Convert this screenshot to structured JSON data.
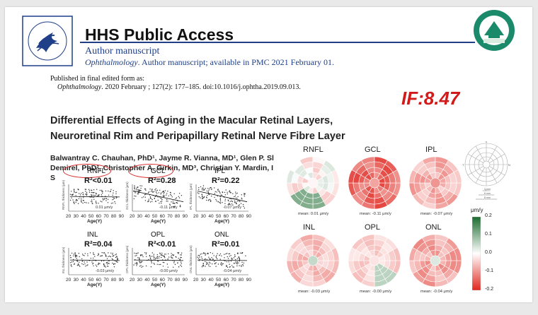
{
  "header": {
    "title": "HHS Public Access",
    "subtitle": "Author manuscript",
    "journal_italic": "Ophthalmology",
    "journal_rest": ". Author manuscript; available in PMC 2021 February 01."
  },
  "published": {
    "line1": "Published in final edited form as:",
    "journal_italic": "Ophthalmology",
    "citation": ". 2020 February ; 127(2): 177–185. doi:10.1016/j.ophtha.2019.09.013."
  },
  "impact_factor": "IF:8.47",
  "paper_title": "Differential Effects of Aging in the Macular Retinal Layers, Neuroretinal Rim and Peripapillary Retinal Nerve Fibre Layer",
  "authors": {
    "line1": "Balwantray C. Chauhan, PhD¹, Jayme R. Vianna, MD¹, Glen P. Sl",
    "line2": "Demirel, PhD², Christopher A. Girkin, MD³, Christian Y. Mardin, I",
    "line3": "S"
  },
  "scatter_panels": [
    {
      "layer": "RNFL",
      "r2": "R²<0.01",
      "slope": "0.01 μm/y",
      "trend": "flat"
    },
    {
      "layer": "GCL",
      "r2": "R²=0.28",
      "slope": "-0.11 μm/y",
      "trend": "down"
    },
    {
      "layer": "IPL",
      "r2": "R²=0.22",
      "slope": "-0.07 μm/y",
      "trend": "down"
    },
    {
      "layer": "INL",
      "r2": "R²=0.04",
      "slope": "-0.03 μm/y",
      "trend": "flat"
    },
    {
      "layer": "OPL",
      "r2": "R²<0.01",
      "slope": "-0.00 μm/y",
      "trend": "flat"
    },
    {
      "layer": "ONL",
      "r2": "R²=0.01",
      "slope": "-0.04 μm/y",
      "trend": "flat"
    }
  ],
  "age_axis": {
    "ticks": [
      "20",
      "30",
      "40",
      "50",
      "60",
      "70",
      "80",
      "90"
    ],
    "label": "Age(Y)"
  },
  "maps": [
    {
      "layer": "RNFL",
      "mean": "mean: 0.01 μm/y"
    },
    {
      "layer": "GCL",
      "mean": "mean: -0.11 μm/y"
    },
    {
      "layer": "IPL",
      "mean": "mean: -0.07 μm/y"
    },
    {
      "layer": "INL",
      "mean": "mean: -0.03 μm/y"
    },
    {
      "layer": "OPL",
      "mean": "mean: -0.00 μm/y"
    },
    {
      "layer": "ONL",
      "mean": "mean: -0.04 μm/y"
    }
  ],
  "colorbar": {
    "unit": "μm/y",
    "ticks": [
      "0.2",
      "0.1",
      "0.0",
      "-0.1",
      "-0.2"
    ],
    "top_color": "#1b6b2f",
    "mid_color": "#ffffff",
    "bottom_color": "#e0271f"
  },
  "grid_diagram": {
    "labels": [
      "S",
      "T",
      "N",
      "I"
    ],
    "scales": [
      "3 mm",
      "6 mm",
      "8 mm"
    ]
  }
}
